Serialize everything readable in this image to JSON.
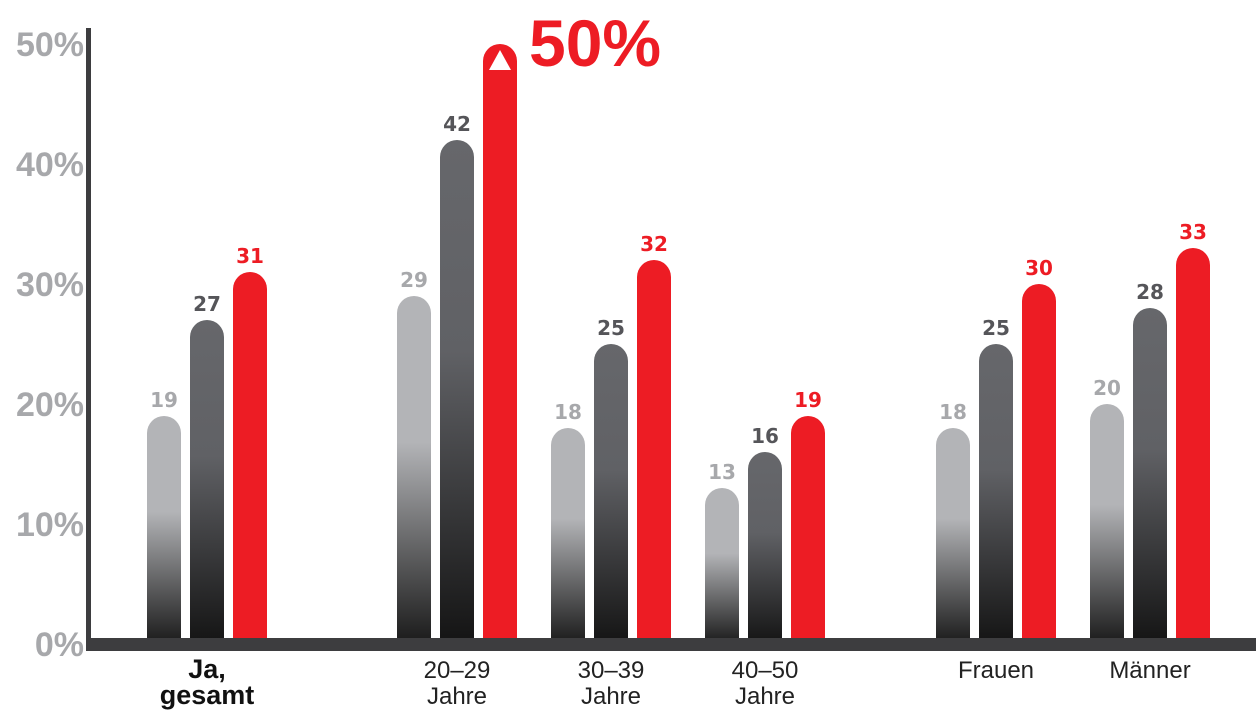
{
  "chart_data": {
    "type": "bar",
    "ylim": [
      0,
      50
    ],
    "y_ticks": [
      "0%",
      "10%",
      "20%",
      "30%",
      "40%",
      "50%"
    ],
    "groups": [
      {
        "label": [
          "Ja,",
          "gesamt"
        ],
        "bold": true,
        "values": [
          19,
          27,
          31
        ]
      },
      {
        "label": [
          "20–29",
          "Jahre"
        ],
        "bold": false,
        "values": [
          29,
          42,
          50
        ]
      },
      {
        "label": [
          "30–39",
          "Jahre"
        ],
        "bold": false,
        "values": [
          18,
          25,
          32
        ]
      },
      {
        "label": [
          "40–50",
          "Jahre"
        ],
        "bold": false,
        "values": [
          13,
          16,
          19
        ]
      },
      {
        "label": [
          "Frauen"
        ],
        "bold": false,
        "values": [
          18,
          25,
          30
        ]
      },
      {
        "label": [
          "Männer"
        ],
        "bold": false,
        "values": [
          20,
          28,
          33
        ]
      }
    ],
    "highlight": {
      "group": 1,
      "series": 2,
      "label": "50%"
    },
    "series_colors": [
      "#b3b4b7",
      "#66676b",
      "#ed1c24"
    ],
    "value_label_colors": [
      "#a7a8ab",
      "#555559",
      "#ed1c24"
    ],
    "axis_color": "#3d3d3f",
    "grid": false
  }
}
